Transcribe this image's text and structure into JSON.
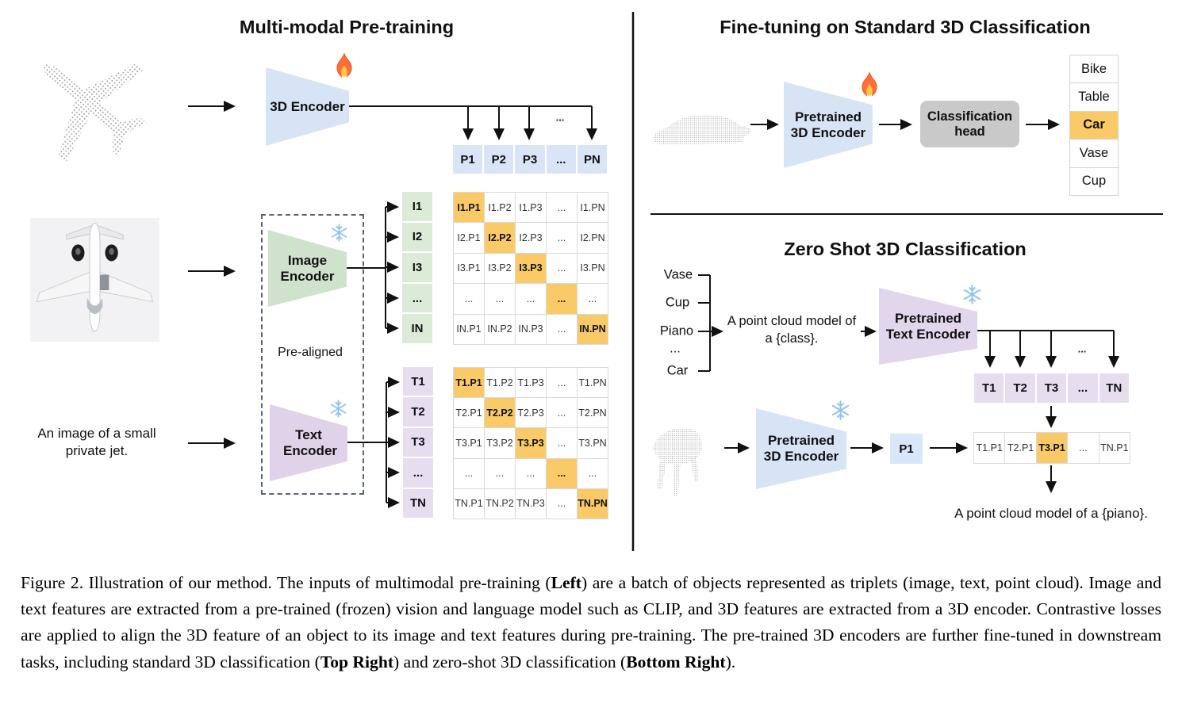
{
  "pretraining": {
    "title": "Multi-modal Pre-training",
    "encoder_3d_label": "3D Encoder",
    "p_row": [
      "P1",
      "P2",
      "P3",
      "...",
      "PN"
    ],
    "image_encoder_label": "Image Encoder",
    "text_encoder_label": "Text Encoder",
    "pre_aligned_label": "Pre-aligned",
    "text_input": "An image of a small private jet.",
    "image_row_labels": [
      "I1",
      "I2",
      "I3",
      "...",
      "IN"
    ],
    "text_row_labels": [
      "T1",
      "T2",
      "T3",
      "...",
      "TN"
    ],
    "image_matrix": [
      [
        "I1.P1",
        "I1.P2",
        "I1.P3",
        "...",
        "I1.PN"
      ],
      [
        "I2.P1",
        "I2.P2",
        "I2.P3",
        "...",
        "I2.PN"
      ],
      [
        "I3.P1",
        "I3.P2",
        "I3.P3",
        "...",
        "I3.PN"
      ],
      [
        "...",
        "...",
        "...",
        "...",
        "..."
      ],
      [
        "IN.P1",
        "IN.P2",
        "IN.P3",
        "...",
        "IN.PN"
      ]
    ],
    "text_matrix": [
      [
        "T1.P1",
        "T1.P2",
        "T1.P3",
        "...",
        "T1.PN"
      ],
      [
        "T2.P1",
        "T2.P2",
        "T2.P3",
        "...",
        "T2.PN"
      ],
      [
        "T3.P1",
        "T3.P2",
        "T3.P3",
        "...",
        "T3.PN"
      ],
      [
        "...",
        "...",
        "...",
        "...",
        "..."
      ],
      [
        "TN.P1",
        "TN.P2",
        "TN.P3",
        "...",
        "TN.PN"
      ]
    ],
    "ellipsis": "...",
    "fire_icon": "fire-icon",
    "snowflake_icon": "snowflake-icon"
  },
  "finetune": {
    "title": "Fine-tuning on Standard 3D Classification",
    "encoder_label": "Pretrained 3D Encoder",
    "head_label": "Classification head",
    "classes": [
      "Bike",
      "Table",
      "Car",
      "Vase",
      "Cup"
    ],
    "predicted_class": "Car"
  },
  "zeroshot": {
    "title": "Zero Shot 3D Classification",
    "classes": [
      "Vase",
      "Cup",
      "Piano",
      "...",
      "Car"
    ],
    "prompt_line1": "A point cloud model of",
    "prompt_line2": "a {class}.",
    "text_encoder_label": "Pretrained Text Encoder",
    "encoder_label": "Pretrained 3D Encoder",
    "t_row": [
      "T1",
      "T2",
      "T3",
      "...",
      "TN"
    ],
    "p_box": "P1",
    "result_row": [
      "T1.P1",
      "T2.P1",
      "T3.P1",
      "...",
      "TN.P1"
    ],
    "highlighted_result": "T3.P1",
    "result_text": "A point cloud model of a {piano}.",
    "ellipsis": "..."
  },
  "caption": {
    "segments": [
      {
        "text": "Figure 2. Illustration of our method. The inputs of multimodal pre-training (",
        "bold": false
      },
      {
        "text": "Left",
        "bold": true
      },
      {
        "text": ") are a batch of objects represented as triplets (image, text, point cloud).  Image and text features are extracted from a pre-trained (frozen) vision and language model such as CLIP, and 3D features are extracted from a 3D encoder.  Contrastive losses are applied to align the 3D feature of an object to its image and text features during pre-training.  The pre-trained 3D encoders are further fine-tuned in downstream tasks, including standard 3D classification (",
        "bold": false
      },
      {
        "text": "Top Right",
        "bold": true
      },
      {
        "text": ") and zero-shot 3D classification (",
        "bold": false
      },
      {
        "text": "Bottom Right",
        "bold": true
      },
      {
        "text": ").",
        "bold": false
      }
    ]
  },
  "colors": {
    "blue_fill": "#d7e4f6",
    "green_fill": "#dcead8",
    "purple_fill": "#e6deef",
    "highlight_orange": "#f9ca67",
    "head_gray": "#c9c9c9"
  }
}
